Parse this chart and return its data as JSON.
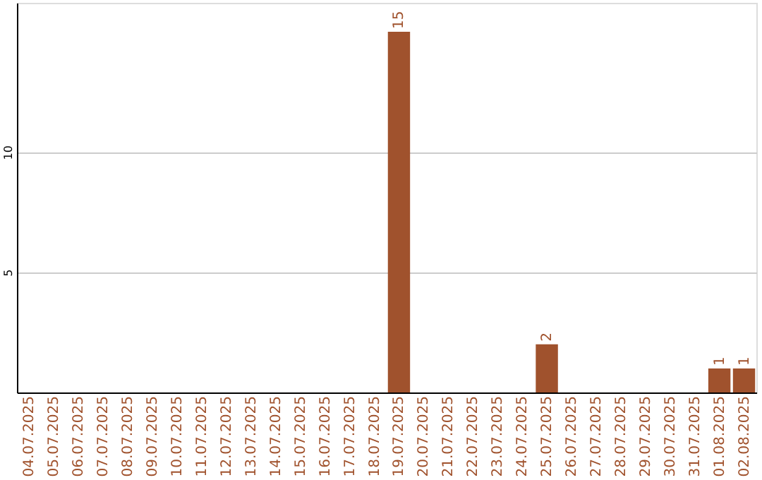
{
  "chart_data": {
    "type": "bar",
    "categories": [
      "04.07.2025",
      "05.07.2025",
      "06.07.2025",
      "07.07.2025",
      "08.07.2025",
      "09.07.2025",
      "10.07.2025",
      "11.07.2025",
      "12.07.2025",
      "13.07.2025",
      "14.07.2025",
      "15.07.2025",
      "16.07.2025",
      "17.07.2025",
      "18.07.2025",
      "19.07.2025",
      "20.07.2025",
      "21.07.2025",
      "22.07.2025",
      "23.07.2025",
      "24.07.2025",
      "25.07.2025",
      "26.07.2025",
      "27.07.2025",
      "28.07.2025",
      "29.07.2025",
      "30.07.2025",
      "31.07.2025",
      "01.08.2025",
      "02.08.2025"
    ],
    "values": [
      0,
      0,
      0,
      0,
      0,
      0,
      0,
      0,
      0,
      0,
      0,
      0,
      0,
      0,
      0,
      15,
      0,
      0,
      0,
      0,
      0,
      2,
      0,
      0,
      0,
      0,
      0,
      0,
      1,
      1
    ],
    "value_labels": [
      null,
      null,
      null,
      null,
      null,
      null,
      null,
      null,
      null,
      null,
      null,
      null,
      null,
      null,
      null,
      "15",
      null,
      null,
      null,
      null,
      null,
      "2",
      null,
      null,
      null,
      null,
      null,
      null,
      "1",
      "1"
    ],
    "color": "#a0522d",
    "ylim": [
      0,
      16.2
    ],
    "yticks": [
      5,
      10
    ],
    "grid": "y"
  }
}
